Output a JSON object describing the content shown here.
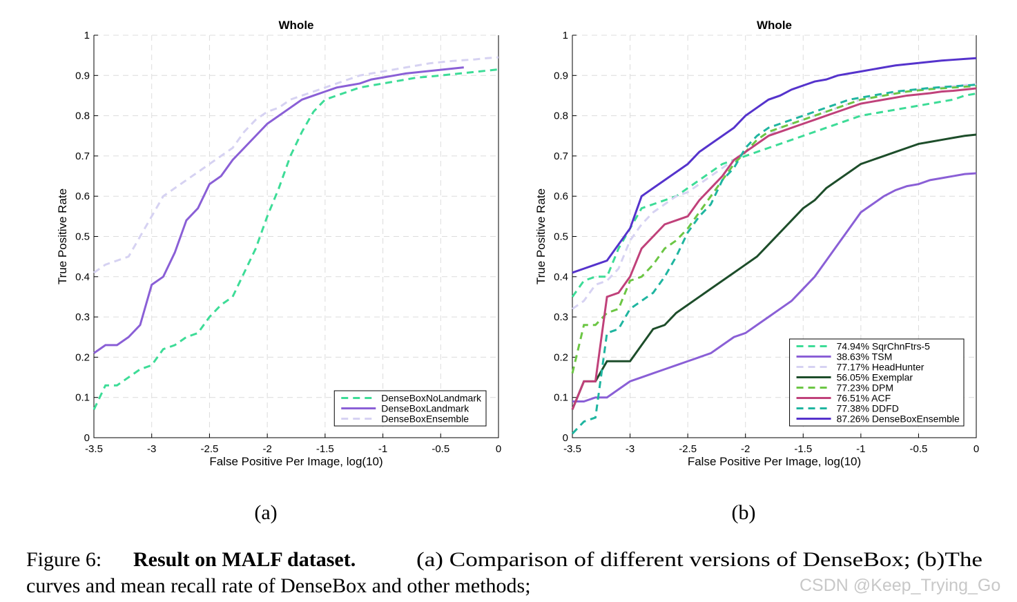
{
  "chart_data": [
    {
      "type": "line",
      "title": "Whole",
      "xlabel": "False Positive Per Image, log(10)",
      "ylabel": "True Positive Rate",
      "x": [
        -3.5,
        -3.4,
        -3.3,
        -3.2,
        -3.1,
        -3.0,
        -2.9,
        -2.8,
        -2.7,
        -2.6,
        -2.5,
        -2.4,
        -2.3,
        -2.2,
        -2.1,
        -2.0,
        -1.9,
        -1.8,
        -1.7,
        -1.6,
        -1.5,
        -1.4,
        -1.3,
        -1.2,
        -1.1,
        -1.0,
        -0.9,
        -0.8,
        -0.7,
        -0.6,
        -0.5,
        -0.4,
        -0.3,
        -0.2,
        -0.1,
        0
      ],
      "xlim": [
        -3.5,
        0
      ],
      "xticks": [
        -3.5,
        -3,
        -2.5,
        -2,
        -1.5,
        -1,
        -0.5,
        0
      ],
      "ylim": [
        0,
        1
      ],
      "yticks": [
        0,
        0.1,
        0.2,
        0.3,
        0.4,
        0.5,
        0.6,
        0.7,
        0.8,
        0.9,
        1
      ],
      "grid": true,
      "legend": "lower right",
      "series": [
        {
          "name": "DenseBoxNoLandmark",
          "color": "#3ddc97",
          "dashed": true,
          "values": [
            0.07,
            0.13,
            0.13,
            0.15,
            0.17,
            0.18,
            0.22,
            0.23,
            0.25,
            0.26,
            0.3,
            0.33,
            0.35,
            0.41,
            0.47,
            0.55,
            0.62,
            0.7,
            0.76,
            0.81,
            0.84,
            0.85,
            0.86,
            0.87,
            0.875,
            0.88,
            0.885,
            0.89,
            0.895,
            0.897,
            0.9,
            0.903,
            0.906,
            0.909,
            0.912,
            0.915
          ]
        },
        {
          "name": "DenseBoxLandmark",
          "color": "#8a5fd6",
          "dashed": false,
          "values": [
            0.21,
            0.23,
            0.23,
            0.25,
            0.28,
            0.38,
            0.4,
            0.46,
            0.54,
            0.57,
            0.63,
            0.65,
            0.69,
            0.72,
            0.75,
            0.78,
            0.8,
            0.82,
            0.84,
            0.85,
            0.86,
            0.87,
            0.875,
            0.88,
            0.89,
            0.895,
            0.9,
            0.905,
            0.908,
            0.911,
            0.914,
            0.917,
            0.92,
            null,
            null,
            null
          ]
        },
        {
          "name": "DenseBoxEnsemble",
          "color": "#d6d2f2",
          "dashed": true,
          "values": [
            0.41,
            0.43,
            0.44,
            0.45,
            0.5,
            0.55,
            0.6,
            0.62,
            0.64,
            0.66,
            0.68,
            0.7,
            0.72,
            0.76,
            0.79,
            0.81,
            0.82,
            0.84,
            0.85,
            0.86,
            0.87,
            0.88,
            0.89,
            0.9,
            0.905,
            0.91,
            0.915,
            0.92,
            0.925,
            0.93,
            0.933,
            0.936,
            0.938,
            0.94,
            0.943,
            0.945
          ]
        }
      ]
    },
    {
      "type": "line",
      "title": "Whole",
      "xlabel": "False Positive Per Image, log(10)",
      "ylabel": "True Positive Rate",
      "x": [
        -3.5,
        -3.4,
        -3.3,
        -3.2,
        -3.1,
        -3.0,
        -2.9,
        -2.8,
        -2.7,
        -2.6,
        -2.5,
        -2.4,
        -2.3,
        -2.2,
        -2.1,
        -2.0,
        -1.9,
        -1.8,
        -1.7,
        -1.6,
        -1.5,
        -1.4,
        -1.3,
        -1.2,
        -1.1,
        -1.0,
        -0.9,
        -0.8,
        -0.7,
        -0.6,
        -0.5,
        -0.4,
        -0.3,
        -0.2,
        -0.1,
        0
      ],
      "xlim": [
        -3.5,
        0
      ],
      "xticks": [
        -3.5,
        -3,
        -2.5,
        -2,
        -1.5,
        -1,
        -0.5,
        0
      ],
      "ylim": [
        0,
        1
      ],
      "yticks": [
        0,
        0.1,
        0.2,
        0.3,
        0.4,
        0.5,
        0.6,
        0.7,
        0.8,
        0.9,
        1
      ],
      "grid": true,
      "legend": "lower right",
      "series": [
        {
          "name": "74.94% SqrChnFtrs-5",
          "color": "#3ddc97",
          "dashed": true,
          "values": [
            0.35,
            0.39,
            0.4,
            0.4,
            0.47,
            0.52,
            0.57,
            0.58,
            0.59,
            0.6,
            0.62,
            0.64,
            0.66,
            0.68,
            0.69,
            0.7,
            0.71,
            0.72,
            0.73,
            0.74,
            0.75,
            0.76,
            0.77,
            0.78,
            0.79,
            0.8,
            0.805,
            0.81,
            0.815,
            0.82,
            0.825,
            0.83,
            0.835,
            0.84,
            0.85,
            0.855
          ]
        },
        {
          "name": "38.63% TSM",
          "color": "#8a5fd6",
          "dashed": false,
          "values": [
            0.09,
            0.09,
            0.1,
            0.1,
            0.12,
            0.14,
            0.15,
            0.16,
            0.17,
            0.18,
            0.19,
            0.2,
            0.21,
            0.23,
            0.25,
            0.26,
            0.28,
            0.3,
            0.32,
            0.34,
            0.37,
            0.4,
            0.44,
            0.48,
            0.52,
            0.56,
            0.58,
            0.6,
            0.615,
            0.625,
            0.63,
            0.64,
            0.645,
            0.65,
            0.655,
            0.657
          ]
        },
        {
          "name": "77.17% HeadHunter",
          "color": "#d6d2f2",
          "dashed": true,
          "values": [
            0.32,
            0.34,
            0.38,
            0.39,
            0.42,
            0.49,
            0.53,
            0.56,
            0.58,
            0.6,
            0.61,
            0.63,
            0.65,
            0.67,
            0.69,
            0.71,
            0.73,
            0.75,
            0.77,
            0.78,
            0.79,
            0.8,
            0.81,
            0.82,
            0.83,
            0.84,
            0.845,
            0.85,
            0.855,
            0.86,
            0.865,
            0.867,
            0.87,
            0.873,
            0.876,
            0.878
          ]
        },
        {
          "name": "56.05% Exemplar",
          "color": "#1d4d2a",
          "dashed": false,
          "values": [
            0.07,
            0.14,
            0.14,
            0.19,
            0.19,
            0.19,
            0.23,
            0.27,
            0.28,
            0.31,
            0.33,
            0.35,
            0.37,
            0.39,
            0.41,
            0.43,
            0.45,
            0.48,
            0.51,
            0.54,
            0.57,
            0.59,
            0.62,
            0.64,
            0.66,
            0.68,
            0.69,
            0.7,
            0.71,
            0.72,
            0.73,
            0.735,
            0.74,
            0.745,
            0.75,
            0.753
          ]
        },
        {
          "name": "77.23% DPM",
          "color": "#6cc644",
          "dashed": true,
          "values": [
            0.16,
            0.28,
            0.28,
            0.31,
            0.32,
            0.39,
            0.4,
            0.43,
            0.47,
            0.49,
            0.52,
            0.56,
            0.6,
            0.64,
            0.68,
            0.71,
            0.74,
            0.76,
            0.77,
            0.78,
            0.79,
            0.8,
            0.81,
            0.82,
            0.83,
            0.84,
            0.845,
            0.85,
            0.855,
            0.86,
            0.863,
            0.866,
            0.868,
            0.87,
            0.872,
            0.874
          ]
        },
        {
          "name": "76.51% ACF",
          "color": "#c0417a",
          "dashed": false,
          "values": [
            0.07,
            0.14,
            0.14,
            0.35,
            0.36,
            0.4,
            0.47,
            0.5,
            0.53,
            0.54,
            0.55,
            0.59,
            0.62,
            0.65,
            0.69,
            0.71,
            0.73,
            0.75,
            0.76,
            0.77,
            0.78,
            0.79,
            0.8,
            0.81,
            0.82,
            0.83,
            0.835,
            0.84,
            0.845,
            0.85,
            0.853,
            0.856,
            0.86,
            0.862,
            0.865,
            0.868
          ]
        },
        {
          "name": "77.38% DDFD",
          "color": "#1fb5a0",
          "dashed": true,
          "values": [
            0.01,
            0.04,
            0.05,
            0.26,
            0.27,
            0.32,
            0.34,
            0.36,
            0.4,
            0.45,
            0.51,
            0.55,
            0.58,
            0.64,
            0.67,
            0.72,
            0.75,
            0.77,
            0.78,
            0.79,
            0.8,
            0.81,
            0.82,
            0.83,
            0.84,
            0.845,
            0.85,
            0.855,
            0.86,
            0.863,
            0.866,
            0.869,
            0.871,
            0.873,
            0.875,
            0.877
          ]
        },
        {
          "name": "87.26% DenseBoxEnsemble",
          "color": "#5533cc",
          "dashed": false,
          "values": [
            0.41,
            0.42,
            0.43,
            0.44,
            0.48,
            0.52,
            0.6,
            0.62,
            0.64,
            0.66,
            0.68,
            0.71,
            0.73,
            0.75,
            0.77,
            0.8,
            0.82,
            0.84,
            0.85,
            0.865,
            0.875,
            0.885,
            0.89,
            0.9,
            0.905,
            0.91,
            0.915,
            0.92,
            0.925,
            0.928,
            0.931,
            0.934,
            0.937,
            0.939,
            0.941,
            0.943
          ]
        }
      ]
    }
  ],
  "subcaptions": [
    "(a)",
    "(b)"
  ],
  "caption": {
    "label": "Figure 6:",
    "bold": "Result on MALF dataset.",
    "line1": "(a) Comparison of different versions of DenseBox; (b)The",
    "line2": "curves and mean recall rate of DenseBox and other methods;"
  },
  "watermark": "CSDN @Keep_Trying_Go"
}
